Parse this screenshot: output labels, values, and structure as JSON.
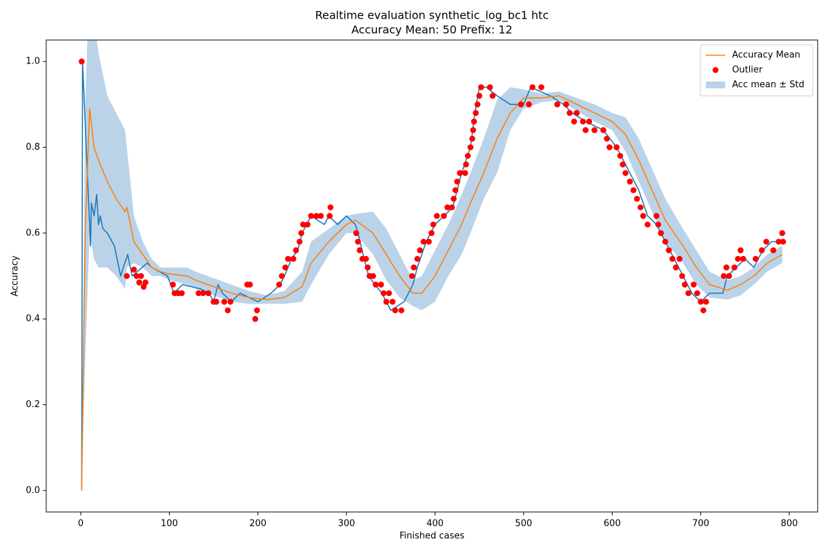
{
  "chart_data": {
    "type": "line",
    "title": "Realtime evaluation synthetic_log_bc1 htc",
    "subtitle": "Accuracy Mean: 50 Prefix: 12",
    "x_label": "Finished cases",
    "y_label": "Accuracy",
    "xlim": [
      -39,
      832
    ],
    "ylim": [
      -0.05,
      1.05
    ],
    "xticks": [
      0,
      100,
      200,
      300,
      400,
      500,
      600,
      700,
      800
    ],
    "yticks": [
      {
        "value": 0,
        "label": "0.0"
      },
      0.2,
      0.4,
      0.6,
      0.8,
      {
        "value": 1,
        "label": "1.0"
      }
    ],
    "grid": false,
    "legend": "upper right",
    "series": [
      {
        "kind": "line",
        "color": "#1f77b4",
        "x": [
          1,
          2,
          11,
          12,
          15,
          18,
          20,
          22,
          25,
          30,
          38,
          45,
          48,
          53,
          58,
          75,
          80,
          98,
          105,
          115,
          135,
          145,
          150,
          155,
          160,
          170,
          180,
          200,
          215,
          225,
          230,
          238,
          245,
          250,
          255,
          260,
          275,
          280,
          290,
          300,
          310,
          313,
          320,
          325,
          332,
          340,
          350,
          365,
          375,
          380,
          390,
          400,
          410,
          420,
          425,
          430,
          440,
          445,
          450,
          458,
          470,
          485,
          500,
          508,
          530,
          545,
          555,
          570,
          590,
          605,
          620,
          630,
          640,
          650,
          660,
          670,
          680,
          690,
          700,
          710,
          725,
          730,
          740,
          750,
          760,
          770,
          780,
          792
        ],
        "values": [
          0,
          1.0,
          0.57,
          0.67,
          0.64,
          0.69,
          0.62,
          0.64,
          0.61,
          0.6,
          0.57,
          0.5,
          0.52,
          0.55,
          0.5,
          0.53,
          0.52,
          0.5,
          0.46,
          0.48,
          0.47,
          0.46,
          0.44,
          0.48,
          0.46,
          0.44,
          0.46,
          0.44,
          0.46,
          0.48,
          0.5,
          0.54,
          0.56,
          0.6,
          0.62,
          0.64,
          0.62,
          0.64,
          0.62,
          0.64,
          0.62,
          0.6,
          0.54,
          0.5,
          0.48,
          0.46,
          0.42,
          0.44,
          0.48,
          0.52,
          0.58,
          0.62,
          0.64,
          0.66,
          0.7,
          0.74,
          0.8,
          0.88,
          0.94,
          0.94,
          0.92,
          0.9,
          0.9,
          0.94,
          0.92,
          0.9,
          0.88,
          0.86,
          0.84,
          0.8,
          0.74,
          0.7,
          0.64,
          0.62,
          0.58,
          0.54,
          0.5,
          0.46,
          0.44,
          0.46,
          0.46,
          0.5,
          0.52,
          0.54,
          0.52,
          0.56,
          0.58,
          0.58
        ]
      },
      {
        "name": "Accuracy Mean",
        "kind": "line",
        "color": "#ff7f0e",
        "x": [
          1,
          5,
          10,
          15,
          20,
          30,
          40,
          50,
          52,
          60,
          70,
          80,
          90,
          100,
          120,
          130,
          150,
          170,
          190,
          210,
          230,
          250,
          260,
          280,
          300,
          310,
          330,
          345,
          360,
          375,
          385,
          400,
          415,
          430,
          440,
          455,
          470,
          485,
          500,
          520,
          540,
          560,
          580,
          600,
          615,
          630,
          645,
          660,
          680,
          695,
          710,
          730,
          745,
          760,
          775,
          792
        ],
        "values": [
          0,
          0.6,
          0.89,
          0.8,
          0.77,
          0.72,
          0.68,
          0.65,
          0.66,
          0.58,
          0.55,
          0.52,
          0.51,
          0.505,
          0.5,
          0.49,
          0.475,
          0.46,
          0.45,
          0.445,
          0.45,
          0.475,
          0.53,
          0.58,
          0.62,
          0.63,
          0.6,
          0.55,
          0.5,
          0.46,
          0.46,
          0.5,
          0.56,
          0.62,
          0.67,
          0.74,
          0.82,
          0.88,
          0.915,
          0.915,
          0.92,
          0.9,
          0.88,
          0.86,
          0.83,
          0.77,
          0.7,
          0.63,
          0.57,
          0.52,
          0.48,
          0.467,
          0.48,
          0.5,
          0.53,
          0.55
        ]
      },
      {
        "name": "Outlier",
        "kind": "scatter",
        "color": "#ff0000",
        "x": [
          1,
          52,
          60,
          63,
          66,
          68,
          71,
          73,
          104,
          106,
          110,
          114,
          133,
          138,
          144,
          150,
          153,
          162,
          166,
          169,
          188,
          191,
          197,
          199,
          224,
          227,
          231,
          234,
          240,
          243,
          247,
          249,
          251,
          256,
          260,
          266,
          271,
          281,
          282,
          311,
          313,
          315,
          318,
          322,
          324,
          326,
          330,
          333,
          339,
          342,
          345,
          348,
          352,
          355,
          362,
          374,
          376,
          380,
          383,
          387,
          393,
          396,
          398,
          402,
          410,
          414,
          419,
          421,
          423,
          425,
          428,
          434,
          435,
          437,
          440,
          442,
          443,
          444,
          446,
          448,
          450,
          452,
          462,
          465,
          497,
          506,
          510,
          520,
          538,
          548,
          552,
          557,
          560,
          567,
          570,
          574,
          580,
          590,
          594,
          597,
          605,
          609,
          612,
          615,
          620,
          624,
          628,
          632,
          635,
          640,
          650,
          652,
          655,
          660,
          664,
          668,
          672,
          676,
          679,
          682,
          686,
          692,
          696,
          700,
          703,
          706,
          726,
          729,
          732,
          738,
          742,
          745,
          748,
          762,
          769,
          774,
          782,
          788,
          792,
          793
        ],
        "values": [
          1.0,
          0.5,
          0.515,
          0.5,
          0.485,
          0.5,
          0.475,
          0.485,
          0.48,
          0.46,
          0.46,
          0.46,
          0.46,
          0.46,
          0.46,
          0.44,
          0.44,
          0.44,
          0.42,
          0.44,
          0.48,
          0.48,
          0.4,
          0.42,
          0.48,
          0.5,
          0.52,
          0.54,
          0.54,
          0.56,
          0.58,
          0.6,
          0.62,
          0.62,
          0.64,
          0.64,
          0.64,
          0.64,
          0.66,
          0.6,
          0.58,
          0.56,
          0.54,
          0.54,
          0.52,
          0.5,
          0.5,
          0.48,
          0.48,
          0.46,
          0.44,
          0.46,
          0.44,
          0.42,
          0.42,
          0.5,
          0.52,
          0.54,
          0.56,
          0.58,
          0.58,
          0.6,
          0.62,
          0.64,
          0.64,
          0.66,
          0.66,
          0.68,
          0.7,
          0.72,
          0.74,
          0.74,
          0.76,
          0.78,
          0.8,
          0.82,
          0.84,
          0.86,
          0.88,
          0.9,
          0.92,
          0.94,
          0.94,
          0.92,
          0.9,
          0.9,
          0.94,
          0.94,
          0.9,
          0.9,
          0.88,
          0.86,
          0.88,
          0.86,
          0.84,
          0.86,
          0.84,
          0.84,
          0.82,
          0.8,
          0.8,
          0.78,
          0.76,
          0.74,
          0.72,
          0.7,
          0.68,
          0.66,
          0.64,
          0.62,
          0.64,
          0.62,
          0.6,
          0.58,
          0.56,
          0.54,
          0.52,
          0.54,
          0.5,
          0.48,
          0.46,
          0.48,
          0.46,
          0.44,
          0.42,
          0.44,
          0.5,
          0.52,
          0.5,
          0.52,
          0.54,
          0.56,
          0.54,
          0.54,
          0.56,
          0.58,
          0.56,
          0.58,
          0.6,
          0.58
        ]
      },
      {
        "name": "Acc mean ± Std",
        "kind": "band",
        "color": "#bad3e8",
        "x": [
          1,
          5,
          10,
          15,
          20,
          30,
          40,
          50,
          52,
          60,
          70,
          80,
          90,
          100,
          120,
          130,
          150,
          170,
          190,
          210,
          230,
          250,
          260,
          280,
          300,
          310,
          330,
          345,
          360,
          375,
          385,
          400,
          415,
          430,
          440,
          455,
          470,
          485,
          500,
          520,
          540,
          560,
          580,
          600,
          615,
          630,
          645,
          660,
          680,
          695,
          710,
          730,
          745,
          760,
          775,
          792
        ],
        "lower": [
          0,
          0.3,
          0.6,
          0.54,
          0.52,
          0.52,
          0.5,
          0.47,
          0.52,
          0.53,
          0.52,
          0.5,
          0.5,
          0.49,
          0.48,
          0.47,
          0.455,
          0.44,
          0.435,
          0.435,
          0.435,
          0.44,
          0.48,
          0.55,
          0.6,
          0.6,
          0.55,
          0.49,
          0.45,
          0.43,
          0.42,
          0.44,
          0.5,
          0.55,
          0.6,
          0.68,
          0.74,
          0.84,
          0.89,
          0.905,
          0.91,
          0.885,
          0.86,
          0.84,
          0.79,
          0.72,
          0.65,
          0.58,
          0.53,
          0.48,
          0.45,
          0.445,
          0.455,
          0.48,
          0.51,
          0.53
        ],
        "upper": [
          0,
          0.9,
          1.2,
          1.1,
          1.02,
          0.92,
          0.88,
          0.84,
          0.8,
          0.64,
          0.58,
          0.54,
          0.52,
          0.52,
          0.52,
          0.51,
          0.495,
          0.48,
          0.465,
          0.455,
          0.465,
          0.51,
          0.58,
          0.61,
          0.64,
          0.645,
          0.65,
          0.61,
          0.55,
          0.49,
          0.5,
          0.56,
          0.62,
          0.69,
          0.74,
          0.82,
          0.91,
          0.94,
          0.935,
          0.925,
          0.93,
          0.915,
          0.9,
          0.88,
          0.87,
          0.82,
          0.75,
          0.68,
          0.61,
          0.56,
          0.51,
          0.49,
          0.5,
          0.52,
          0.55,
          0.57
        ]
      }
    ]
  }
}
